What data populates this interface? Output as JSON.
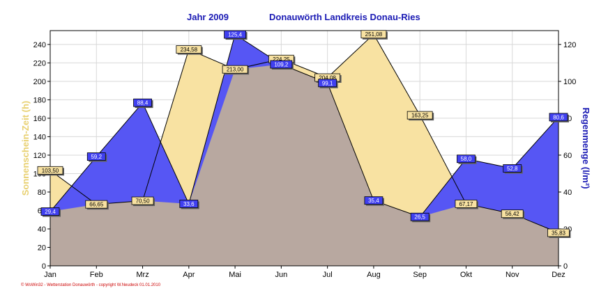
{
  "title": {
    "left": "Jahr  2009",
    "right": "Donauwörth Landkreis Donau-Ries"
  },
  "footer": "© WsWin32 - Wetterstation Donauwörth - copyright W.Neudeck 01.01.2010",
  "colors": {
    "sunshine_fill": "#f8e2a2",
    "rain_fill": "#5656f4",
    "overlap_fill": "#b8a8a0",
    "sunshine_label_bg": "#f8e2a2",
    "rain_label_bg": "#4040f0",
    "left_axis_title": "#e8d070",
    "right_axis_title": "#1a1ab4"
  },
  "chart_data": {
    "type": "area",
    "categories": [
      "Jan",
      "Feb",
      "Mrz",
      "Apr",
      "Mai",
      "Jun",
      "Jul",
      "Aug",
      "Sep",
      "Okt",
      "Nov",
      "Dez"
    ],
    "category_labels": [
      "Jan",
      "Feb",
      "Mrz",
      "Apr",
      "Mai",
      "Jun",
      "Jul",
      "Aug",
      "Sep",
      "Okt",
      "Nov",
      "Dez"
    ],
    "ylabel_left": "Sonnenschein-Zeit  (h)",
    "ylabel_right": "Regenmenge  (l/m²)",
    "ylim_left": [
      0,
      255
    ],
    "ylim_right": [
      0,
      127.5
    ],
    "yticks_left": [
      0,
      20,
      40,
      60,
      80,
      100,
      120,
      140,
      160,
      180,
      200,
      220,
      240
    ],
    "yticks_right": [
      0,
      20,
      40,
      60,
      80,
      100,
      120
    ],
    "grid": true,
    "series": [
      {
        "axis": "left",
        "values": [
          103.5,
          66.65,
          70.5,
          234.58,
          213.0,
          224.25,
          204.08,
          251.08,
          163.25,
          67.17,
          56.42,
          35.83
        ],
        "labels": [
          "103,50",
          "66,65",
          "70,50",
          "234,58",
          "213,00",
          "224,25",
          "204,08",
          "251,08",
          "163,25",
          "67,17",
          "56,42",
          "35,83"
        ]
      },
      {
        "axis": "right",
        "values": [
          29.4,
          59.2,
          88.4,
          33.6,
          125.4,
          109.2,
          99.1,
          35.4,
          26.5,
          58.0,
          52.8,
          80.6
        ],
        "labels": [
          "29,4",
          "59,2",
          "88,4",
          "33,6",
          "125,4",
          "109,2",
          "99,1",
          "35,4",
          "26,5",
          "58,0",
          "52,8",
          "80,6"
        ]
      }
    ]
  }
}
